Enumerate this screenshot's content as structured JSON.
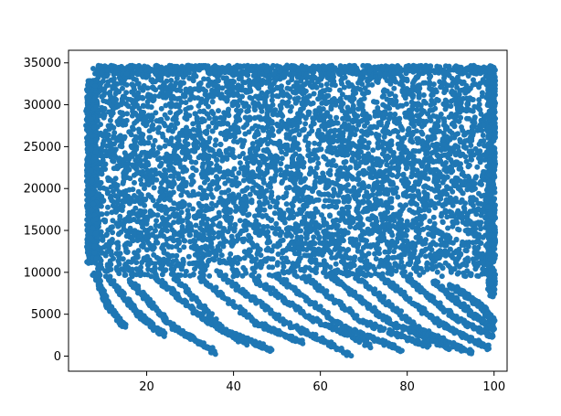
{
  "chart_data": {
    "type": "scatter",
    "title": "",
    "xlabel": "",
    "ylabel": "",
    "xlim": [
      2,
      103
    ],
    "ylim": [
      -1800,
      36500
    ],
    "xticks": [
      20,
      40,
      60,
      80,
      100
    ],
    "yticks": [
      0,
      5000,
      10000,
      15000,
      20000,
      25000,
      30000,
      35000
    ],
    "grid": false,
    "legend": "none",
    "marker_color": "#1f77b4",
    "description_of_points": "dense scatter: points fill roughly y 10000-34700 for x 7-100; below ~10000 they form descending diagonal streaks (curves) toward y~0 for x 20-100",
    "streak_curves": [
      {
        "x": [
          8,
          11,
          15
        ],
        "y": [
          10000,
          6000,
          3500
        ]
      },
      {
        "x": [
          11,
          18,
          24
        ],
        "y": [
          9500,
          5000,
          2500
        ]
      },
      {
        "x": [
          16,
          26,
          36
        ],
        "y": [
          9000,
          3500,
          400
        ]
      },
      {
        "x": [
          22,
          33,
          43
        ],
        "y": [
          9500,
          4500,
          1500
        ]
      },
      {
        "x": [
          26,
          38,
          49
        ],
        "y": [
          9700,
          3000,
          700
        ]
      },
      {
        "x": [
          32,
          45,
          56
        ],
        "y": [
          9500,
          4000,
          1600
        ]
      },
      {
        "x": [
          37,
          52,
          67
        ],
        "y": [
          9700,
          4000,
          200
        ]
      },
      {
        "x": [
          44,
          58,
          72
        ],
        "y": [
          9500,
          4500,
          1200
        ]
      },
      {
        "x": [
          50,
          65,
          79
        ],
        "y": [
          9600,
          3500,
          700
        ]
      },
      {
        "x": [
          56,
          70,
          85
        ],
        "y": [
          9500,
          4000,
          1200
        ]
      },
      {
        "x": [
          62,
          76,
          90
        ],
        "y": [
          9700,
          4000,
          1000
        ]
      },
      {
        "x": [
          68,
          82,
          95
        ],
        "y": [
          9600,
          3500,
          300
        ]
      },
      {
        "x": [
          74,
          87,
          99
        ],
        "y": [
          9500,
          4000,
          900
        ]
      },
      {
        "x": [
          80,
          91,
          100
        ],
        "y": [
          9300,
          4500,
          2300
        ]
      },
      {
        "x": [
          86,
          95,
          100
        ],
        "y": [
          9000,
          5000,
          3300
        ]
      },
      {
        "x": [
          90,
          97,
          100
        ],
        "y": [
          8500,
          6000,
          4000
        ]
      }
    ]
  }
}
